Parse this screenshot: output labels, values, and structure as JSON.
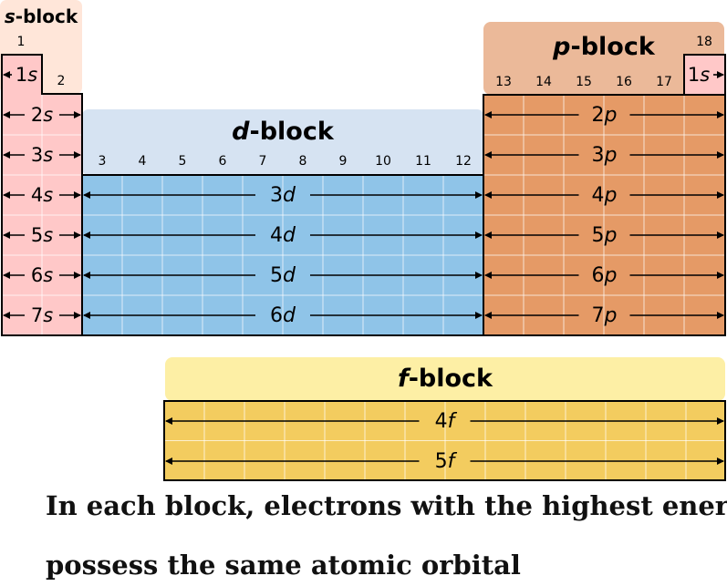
{
  "colors": {
    "s_fill": "#ffc8c8",
    "s_header": "#ffe6d9",
    "p_fill": "#e59a66",
    "p_header": "#ebb999",
    "d_fill": "#8fc4e8",
    "d_header": "#d6e3f2",
    "f_fill": "#f3cc5f",
    "f_header": "#fdefa5",
    "outline": "#000000",
    "grid": "#ffffff"
  },
  "s_block": {
    "title_letter": "s",
    "title_rest": "-block",
    "groups": [
      "1",
      "2"
    ],
    "first_orbital": {
      "n": "1",
      "l": "s"
    },
    "orbitals": [
      {
        "n": "2",
        "l": "s"
      },
      {
        "n": "3",
        "l": "s"
      },
      {
        "n": "4",
        "l": "s"
      },
      {
        "n": "5",
        "l": "s"
      },
      {
        "n": "6",
        "l": "s"
      },
      {
        "n": "7",
        "l": "s"
      }
    ]
  },
  "d_block": {
    "title_letter": "d",
    "title_rest": "-block",
    "groups": [
      "3",
      "4",
      "5",
      "6",
      "7",
      "8",
      "9",
      "10",
      "11",
      "12"
    ],
    "orbitals": [
      {
        "n": "3",
        "l": "d"
      },
      {
        "n": "4",
        "l": "d"
      },
      {
        "n": "5",
        "l": "d"
      },
      {
        "n": "6",
        "l": "d"
      }
    ]
  },
  "p_block": {
    "title_letter": "p",
    "title_rest": "-block",
    "groups": [
      "13",
      "14",
      "15",
      "16",
      "17"
    ],
    "group_18": "18",
    "helium_orbital": {
      "n": "1",
      "l": "s"
    },
    "orbitals": [
      {
        "n": "2",
        "l": "p"
      },
      {
        "n": "3",
        "l": "p"
      },
      {
        "n": "4",
        "l": "p"
      },
      {
        "n": "5",
        "l": "p"
      },
      {
        "n": "6",
        "l": "p"
      },
      {
        "n": "7",
        "l": "p"
      }
    ]
  },
  "f_block": {
    "title_letter": "f",
    "title_rest": "-block",
    "orbitals": [
      {
        "n": "4",
        "l": "f"
      },
      {
        "n": "5",
        "l": "f"
      }
    ]
  },
  "caption": {
    "line1": "In each block, electrons with the highest energy",
    "line2": "possess the same atomic orbital"
  }
}
